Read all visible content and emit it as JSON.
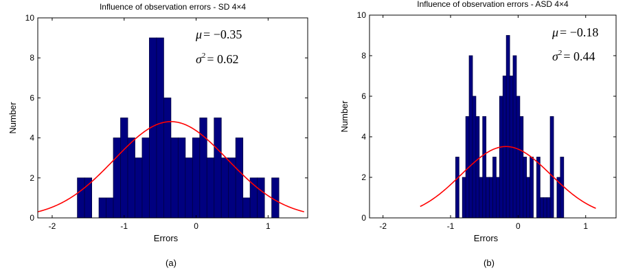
{
  "chart_data": [
    {
      "type": "bar",
      "title": "Influence of observation errors - SD 4×4",
      "xlabel": "Errors",
      "ylabel": "Number",
      "caption": "(a)",
      "xlim": [
        -2.2,
        1.55
      ],
      "ylim": [
        0,
        10
      ],
      "xticks": [
        -2,
        -1,
        0,
        1
      ],
      "yticks": [
        0,
        2,
        4,
        6,
        8,
        10
      ],
      "bin_width": 0.1,
      "bin_centers": [
        -1.6,
        -1.5,
        -1.4,
        -1.3,
        -1.2,
        -1.1,
        -1.0,
        -0.9,
        -0.8,
        -0.7,
        -0.6,
        -0.5,
        -0.4,
        -0.3,
        -0.2,
        -0.1,
        0.0,
        0.1,
        0.2,
        0.3,
        0.4,
        0.5,
        0.6,
        0.7,
        0.8,
        0.9,
        1.0,
        1.1
      ],
      "values": [
        2,
        2,
        0,
        1,
        1,
        4,
        5,
        4,
        3,
        4,
        9,
        9,
        6,
        4,
        4,
        3,
        4,
        5,
        3,
        5,
        3,
        3,
        4,
        1,
        2,
        2,
        0,
        2
      ],
      "fit": {
        "mean": -0.35,
        "variance": 0.62,
        "curve_xlim": [
          -2.2,
          1.5
        ]
      },
      "annotations": {
        "mu_label": "μ",
        "mu_value": "= −0.35",
        "sigma_label": "σ",
        "sigma_sup": "2",
        "sigma_value": "= 0.62"
      },
      "colors": {
        "bar": "#000080",
        "curve": "#ff0000"
      }
    },
    {
      "type": "bar",
      "title": "Influence of observation errors - ASD 4×4",
      "xlabel": "Errors",
      "ylabel": "Number",
      "caption": "(b)",
      "xlim": [
        -2.2,
        1.45
      ],
      "ylim": [
        0,
        10
      ],
      "xticks": [
        -2,
        -1,
        0,
        1
      ],
      "yticks": [
        0,
        2,
        4,
        6,
        8,
        10
      ],
      "bin_width": 0.05,
      "bin_centers": [
        -0.9,
        -0.85,
        -0.8,
        -0.75,
        -0.7,
        -0.65,
        -0.6,
        -0.55,
        -0.5,
        -0.45,
        -0.4,
        -0.35,
        -0.3,
        -0.25,
        -0.2,
        -0.15,
        -0.1,
        -0.05,
        0.0,
        0.05,
        0.1,
        0.15,
        0.2,
        0.25,
        0.3,
        0.35,
        0.4,
        0.45,
        0.5,
        0.55,
        0.6,
        0.65,
        0.7
      ],
      "values": [
        3,
        0,
        2,
        5,
        8,
        6,
        5,
        2,
        5,
        2,
        2,
        3,
        2,
        6,
        7,
        9,
        7,
        8,
        6,
        5,
        3,
        2,
        3,
        0,
        3,
        1,
        1,
        1,
        5,
        0,
        2,
        3,
        0
      ],
      "fit": {
        "mean": -0.18,
        "variance": 0.44,
        "curve_xlim": [
          -1.45,
          1.15
        ]
      },
      "annotations": {
        "mu_label": "μ",
        "mu_value": "= −0.18",
        "sigma_label": "σ",
        "sigma_sup": "2",
        "sigma_value": "= 0.44"
      },
      "colors": {
        "bar": "#000080",
        "curve": "#ff0000"
      }
    }
  ]
}
